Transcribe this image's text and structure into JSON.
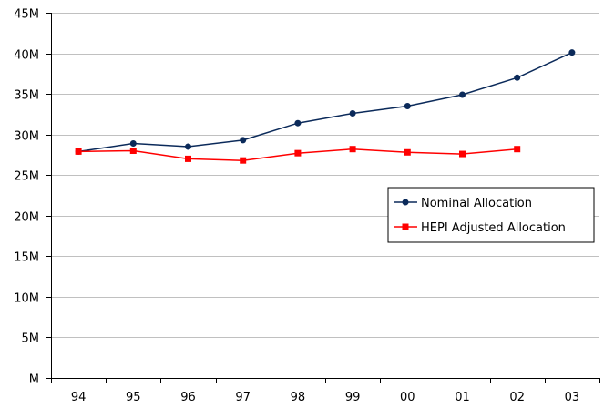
{
  "chart_data": {
    "type": "line",
    "categories": [
      "94",
      "95",
      "96",
      "97",
      "98",
      "99",
      "00",
      "01",
      "02",
      "03"
    ],
    "ylim": [
      0,
      45
    ],
    "y_ticks": [
      0,
      5,
      10,
      15,
      20,
      25,
      30,
      35,
      40,
      45
    ],
    "y_tick_labels": [
      "M",
      "5M",
      "10M",
      "15M",
      "20M",
      "25M",
      "30M",
      "35M",
      "40M",
      "45M"
    ],
    "grid": true,
    "legend_position": "center-right",
    "series": [
      {
        "name": "Nominal Allocation",
        "color": "#0b2a5a",
        "marker": "circle",
        "values": [
          27.9,
          28.9,
          28.5,
          29.3,
          31.4,
          32.6,
          33.5,
          34.9,
          37.0,
          40.1
        ]
      },
      {
        "name": "HEPI Adjusted Allocation",
        "color": "#ff0000",
        "marker": "square",
        "values": [
          27.9,
          28.0,
          27.0,
          26.8,
          27.7,
          28.2,
          27.8,
          27.6,
          28.2,
          null
        ]
      }
    ]
  }
}
